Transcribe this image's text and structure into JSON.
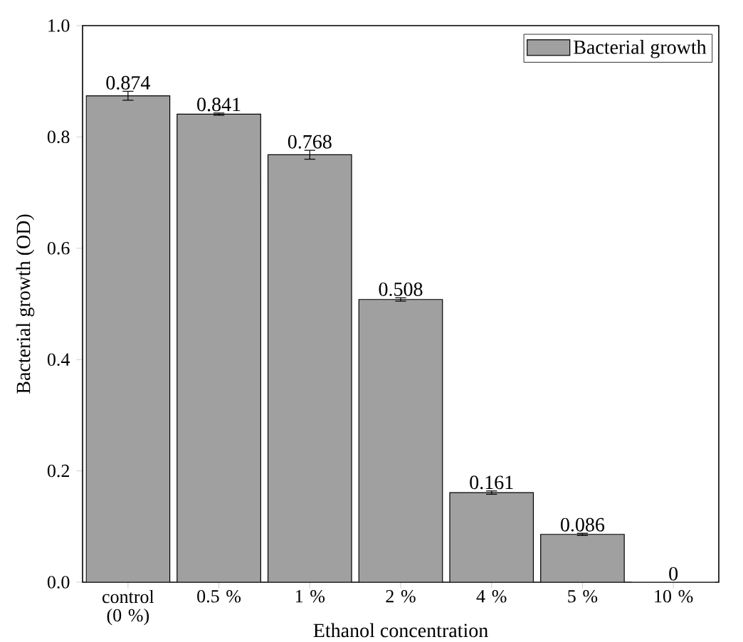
{
  "chart_data": {
    "type": "bar",
    "xlabel": "Ethanol concentration",
    "ylabel": "Bacterial growth (OD)",
    "categories": [
      "control (0 %)",
      "0.5 %",
      "1 %",
      "2 %",
      "4 %",
      "5 %",
      "10 %"
    ],
    "series": [
      {
        "name": "Bacterial growth",
        "color": "#a0a0a0",
        "values": [
          0.874,
          0.841,
          0.768,
          0.508,
          0.161,
          0.086,
          0
        ],
        "errors": [
          0.008,
          0.002,
          0.008,
          0.003,
          0.003,
          0.002,
          null
        ]
      }
    ],
    "ylim": [
      0,
      1.0
    ],
    "yticks": [
      {
        "value": 0,
        "label": "0.0"
      },
      {
        "value": 0.2,
        "label": "0.2"
      },
      {
        "value": 0.4,
        "label": "0.4"
      },
      {
        "value": 0.6,
        "label": "0.6"
      },
      {
        "value": 0.8,
        "label": "0.8"
      },
      {
        "value": 1.0,
        "label": "1.0"
      }
    ],
    "data_labels": true,
    "legend": "top right",
    "grid": false
  }
}
